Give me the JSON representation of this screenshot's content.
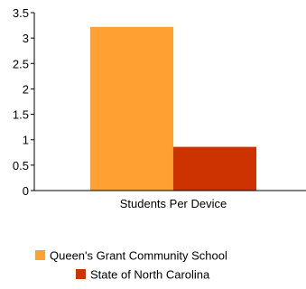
{
  "chart_data": {
    "type": "bar",
    "title": "",
    "xlabel": "",
    "ylabel": "",
    "categories": [
      "Students Per Device"
    ],
    "series": [
      {
        "name": "Queen's Grant Community School",
        "values": [
          3.22
        ],
        "color": "#FFA033"
      },
      {
        "name": "State of North Carolina",
        "values": [
          0.86
        ],
        "color": "#CC3300"
      }
    ],
    "ylim": [
      0,
      3.5
    ],
    "yticks": [
      "0",
      "0.5",
      "1",
      "1.5",
      "2",
      "2.5",
      "3",
      "3.5"
    ],
    "grid": false,
    "legend_position": "bottom"
  }
}
